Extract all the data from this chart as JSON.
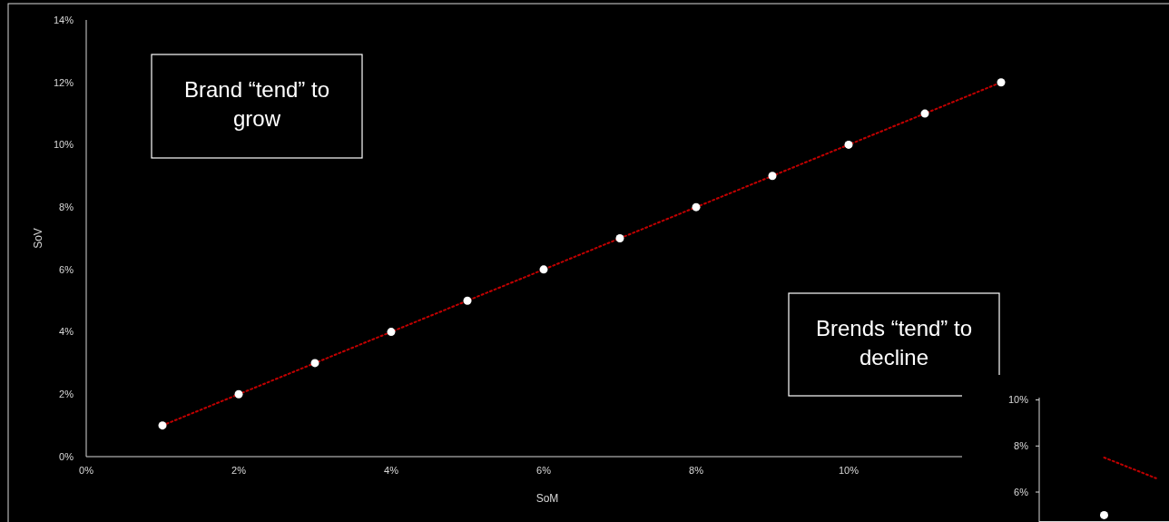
{
  "chart_data": [
    {
      "type": "scatter",
      "xlabel": "SoM",
      "ylabel": "SoV",
      "xlim": [
        0,
        14
      ],
      "ylim": [
        0,
        14
      ],
      "xticks": [
        {
          "value": 0,
          "label": "0%"
        },
        {
          "value": 2,
          "label": "2%"
        },
        {
          "value": 4,
          "label": "4%"
        },
        {
          "value": 6,
          "label": "6%"
        },
        {
          "value": 8,
          "label": "8%"
        },
        {
          "value": 10,
          "label": "10%"
        }
      ],
      "yticks": [
        {
          "value": 0,
          "label": "0%"
        },
        {
          "value": 2,
          "label": "2%"
        },
        {
          "value": 4,
          "label": "4%"
        },
        {
          "value": 6,
          "label": "6%"
        },
        {
          "value": 8,
          "label": "8%"
        },
        {
          "value": 10,
          "label": "10%"
        },
        {
          "value": 12,
          "label": "12%"
        },
        {
          "value": 14,
          "label": "14%"
        }
      ],
      "grid": false,
      "series": [
        {
          "type": "line",
          "color": "#c00000",
          "line_style": "dotted",
          "marker": "none",
          "x": [
            1,
            12
          ],
          "values": [
            1,
            12
          ]
        },
        {
          "color": "#ffffff",
          "marker": "circle",
          "x": [
            1,
            2,
            3,
            4,
            5,
            6,
            7,
            8,
            9,
            10,
            11,
            12
          ],
          "values": [
            1,
            2,
            3,
            4,
            5,
            6,
            7,
            8,
            9,
            10,
            11,
            12
          ]
        }
      ],
      "annotations": [
        "Brand “tend” to grow"
      ]
    },
    {
      "type": "scatter",
      "categories": [
        null,
        null,
        null,
        null,
        null
      ],
      "ylim": [
        4.7,
        10.1
      ],
      "tick_labels": "y",
      "grid": false,
      "yticks": [
        {
          "value": 6,
          "label": "6%"
        },
        {
          "value": 8,
          "label": "8%"
        },
        {
          "value": 10,
          "label": "10%"
        }
      ],
      "series": [
        {
          "type": "line",
          "color": "#c00000",
          "line_style": "dotted",
          "marker": "none",
          "values": [
            null,
            null,
            7.5,
            7.05,
            6.6
          ]
        },
        {
          "color": "#ffffff",
          "marker": "circle",
          "values": [
            null,
            null,
            5.0,
            null,
            null
          ]
        }
      ],
      "annotations": [
        "Brends “tend” to decline"
      ]
    }
  ]
}
